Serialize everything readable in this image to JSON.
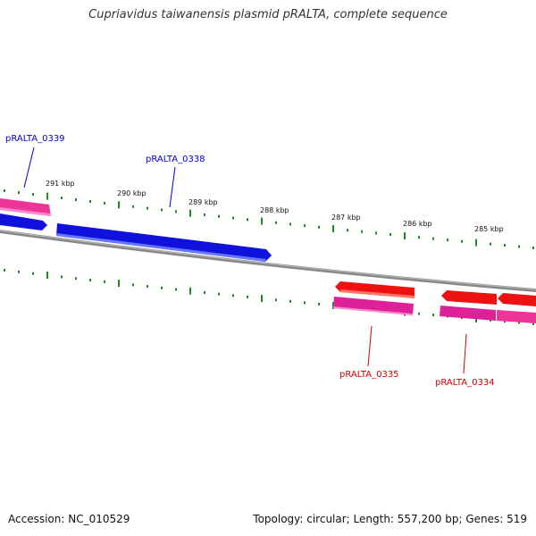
{
  "title": "Cupriavidus taiwanensis plasmid pRALTA, complete sequence",
  "footer": {
    "accession": "Accession: NC_010529",
    "summary": "Topology: circular; Length: 557,200 bp; Genes: 519"
  },
  "colors": {
    "forward_label": "#0000cc",
    "reverse_label": "#cc0000",
    "backbone": "#888888",
    "ticks": "#228822"
  },
  "ticks": [
    {
      "label": "291 kbp",
      "kbp": 291
    },
    {
      "label": "290 kbp",
      "kbp": 290
    },
    {
      "label": "289 kbp",
      "kbp": 289
    },
    {
      "label": "288 kbp",
      "kbp": 288
    },
    {
      "label": "287 kbp",
      "kbp": 287
    },
    {
      "label": "286 kbp",
      "kbp": 286
    },
    {
      "label": "285 kbp",
      "kbp": 285
    }
  ],
  "genes": [
    {
      "id": "pRALTA_0339",
      "strand": "forward"
    },
    {
      "id": "pRALTA_0338",
      "strand": "forward"
    },
    {
      "id": "pRALTA_0335",
      "strand": "reverse"
    },
    {
      "id": "pRALTA_0334",
      "strand": "reverse"
    }
  ]
}
